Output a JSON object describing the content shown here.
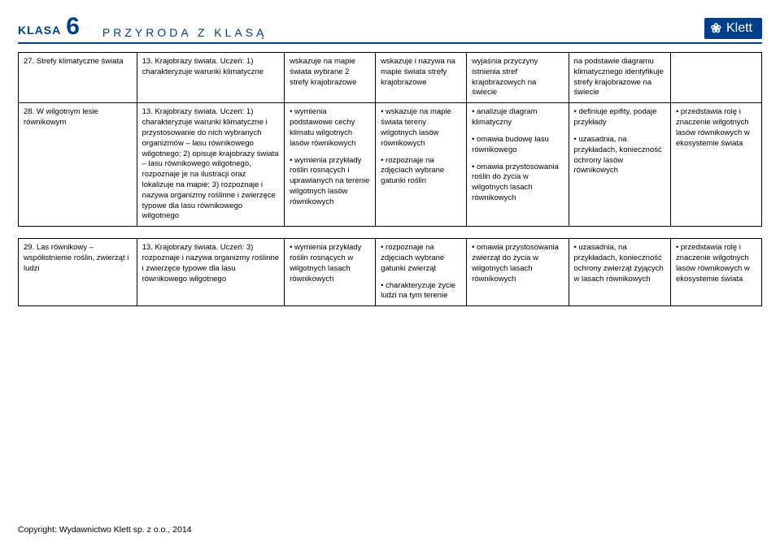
{
  "header": {
    "klasa_word": "KLASA",
    "klasa_num": "6",
    "subtitle": "PRZYRODA Z KLASĄ",
    "brand_logo": "❀",
    "brand_name": "Klett"
  },
  "table1": {
    "rows": [
      {
        "c0": "27. Strefy klimatyczne świata",
        "c1": "13. Krajobrazy świata. Uczeń: 1) charakteryzuje warunki klimatyczne",
        "c2": "wskazuje na mapie świata wybrane 2 strefy krajobrazowe",
        "c3": "wskazuje i nazywa na mapie świata strefy krajobrazowe",
        "c4": "wyjaśnia przyczyny istnienia stref krajobrazowych na świecie",
        "c5": "na podstawie diagramu klimatycznego identyfikuje strefy krajobrazowe na świecie",
        "c6": ""
      },
      {
        "c0": "28. W wilgotnym lesie równikowym",
        "c1": "13. Krajobrazy świata. Uczeń: 1) charakteryzuje warunki klimatyczne i przystosowanie do nich wybranych organizmów – lasu równikowego wilgotnego; 2) opisuje krajobrazy świata – lasu równikowego wilgotnego, rozpoznaje je na ilustracji oraz lokalizuje na mapie; 3) rozpoznaje i nazywa organizmy roślinne i zwierzęce typowe dla lasu równikowego wilgotnego",
        "c2a": "• wymienia podstawowe cechy klimatu wilgotnych lasów równikowych",
        "c2b": "• wymienia przykłady roślin rosnących i uprawianych na terenie wilgotnych lasów równikowych",
        "c3a": "• wskazuje na mapie świata tereny wilgotnych lasów równikowych",
        "c3b": "• rozpoznaje na zdjęciach wybrane gatunki roślin",
        "c4a": "• analizuje diagram klimatyczny",
        "c4b": "• omawia budowę lasu równikowego",
        "c4c": "• omawia przystosowania roślin do życia w wilgotnych lasach równikowych",
        "c5a": "• definiuje epifity, podaje przykłady",
        "c5b": "• uzasadnia, na przykładach, konieczność ochrony lasów równikowych",
        "c6": "• przedstawia rolę i znaczenie wilgotnych lasów równikowych w ekosystemie świata"
      }
    ]
  },
  "table2": {
    "row": {
      "c0": "29. Las równikowy – współistnienie roślin, zwierząt i ludzi",
      "c1": "13. Krajobrazy świata. Uczeń: 3) rozpoznaje i nazywa organizmy roślinne i zwierzęce typowe dla lasu równikowego wilgotnego",
      "c2": "• wymienia przykłady roślin rosnących w wilgotnych lasach równikowych",
      "c3a": "• rozpoznaje na zdjęciach wybrane gatunki zwierząt",
      "c3b": "• charakteryzuje życie ludzi na tym terenie",
      "c4": "• omawia przystosowania zwierząt do życia w wilgotnych lasach równikowych",
      "c5": "• uzasadnia, na przykładach, konieczność ochrony zwierząt żyjących w lasach równikowych",
      "c6": "• przedstawia rolę i znaczenie wilgotnych lasów równikowych w ekosystemie świata"
    }
  },
  "footer": "Copyright: Wydawnictwo Klett sp. z o.o., 2014"
}
